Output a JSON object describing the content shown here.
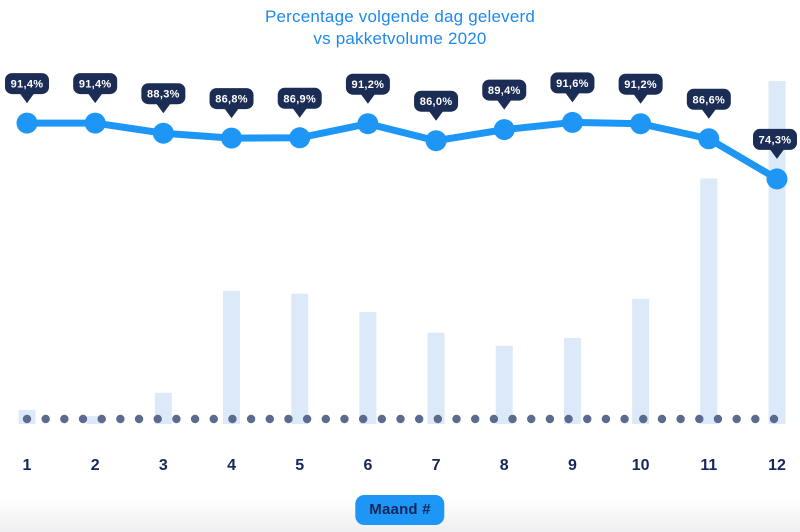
{
  "header": {
    "title_lines": [
      "Percentage volgende dag geleverd",
      "vs pakketvolume 2020"
    ]
  },
  "colors": {
    "title_blue": "#1e88f0",
    "accent_blue": "#1e96f5",
    "bar_fill": "#dce9f8",
    "tooltip_bg": "#1b2c55",
    "tooltip_text": "#ffffff",
    "dot_color": "#5a6b8f",
    "axis_text": "#15265b"
  },
  "chart_data": {
    "type": "combo",
    "title": "Percentage volgende dag geleverd vs pakketvolume 2020",
    "xlabel": "Maand #",
    "categories": [
      "1",
      "2",
      "3",
      "4",
      "5",
      "6",
      "7",
      "8",
      "9",
      "10",
      "11",
      "12"
    ],
    "y_axis": "hidden (values shown as data labels only)",
    "legend": "none",
    "series": [
      {
        "name": "Percentage volgende dag geleverd",
        "type": "line",
        "unit": "%",
        "values": [
          91.4,
          91.4,
          88.3,
          86.8,
          86.9,
          91.2,
          86.0,
          89.4,
          91.6,
          91.2,
          86.6,
          74.3
        ],
        "labels": [
          "91,4%",
          "91,4%",
          "88,3%",
          "86,8%",
          "86,9%",
          "91,2%",
          "86,0%",
          "89,4%",
          "91,6%",
          "91,2%",
          "86,6%",
          "74,3%"
        ]
      },
      {
        "name": "Pakketvolume",
        "type": "bar",
        "unit": "relative (% of max month, no axis shown)",
        "values": [
          4.1,
          2.3,
          9.1,
          38.8,
          38.0,
          32.7,
          26.6,
          22.8,
          25.1,
          36.5,
          71.6,
          100
        ]
      }
    ]
  }
}
